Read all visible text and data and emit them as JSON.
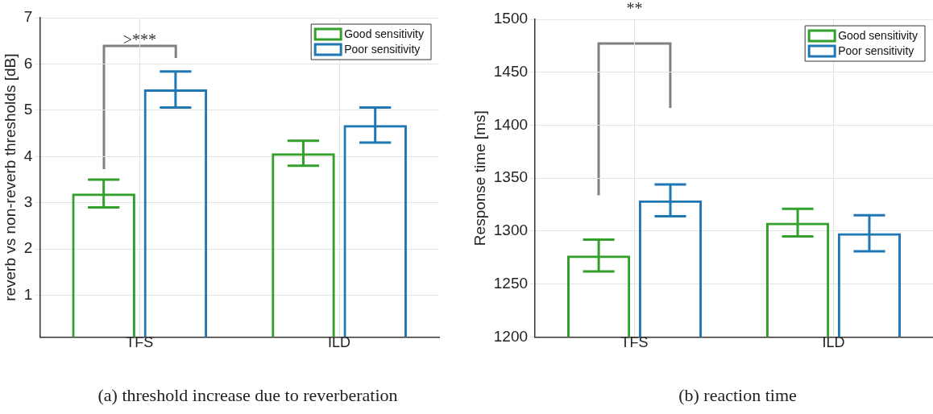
{
  "chart_data": [
    {
      "type": "bar",
      "ylabel": "reverb vs non-reverb thresholds [dB]",
      "categories": [
        "TFS",
        "ILD"
      ],
      "series": [
        {
          "name": "Good sensitivity",
          "color": "#33a02c",
          "values": [
            3.2,
            4.07
          ],
          "errors": [
            0.3,
            0.27
          ]
        },
        {
          "name": "Poor sensitivity",
          "color": "#1f78b4",
          "values": [
            5.45,
            4.68
          ],
          "errors": [
            0.39,
            0.38
          ]
        }
      ],
      "ylim": [
        0.1,
        7
      ],
      "yticks": [
        1,
        2,
        3,
        4,
        5,
        6,
        7
      ],
      "grid": true,
      "legend": "top right",
      "annotations": [
        ">***",
        "(a) threshold increase due to reverberation"
      ]
    },
    {
      "type": "bar",
      "ylabel": "Response time [ms]",
      "categories": [
        "TFS",
        "ILD"
      ],
      "series": [
        {
          "name": "Good sensitivity",
          "color": "#33a02c",
          "values": [
            1277,
            1308
          ],
          "errors": [
            15,
            13
          ]
        },
        {
          "name": "Poor sensitivity",
          "color": "#1f78b4",
          "values": [
            1329,
            1298
          ],
          "errors": [
            15,
            17
          ]
        }
      ],
      "ylim": [
        1200,
        1500
      ],
      "yticks": [
        1200,
        1250,
        1300,
        1350,
        1400,
        1450,
        1500
      ],
      "grid": true,
      "legend": "top right",
      "annotations": [
        "**",
        "(b) reaction time"
      ]
    }
  ]
}
